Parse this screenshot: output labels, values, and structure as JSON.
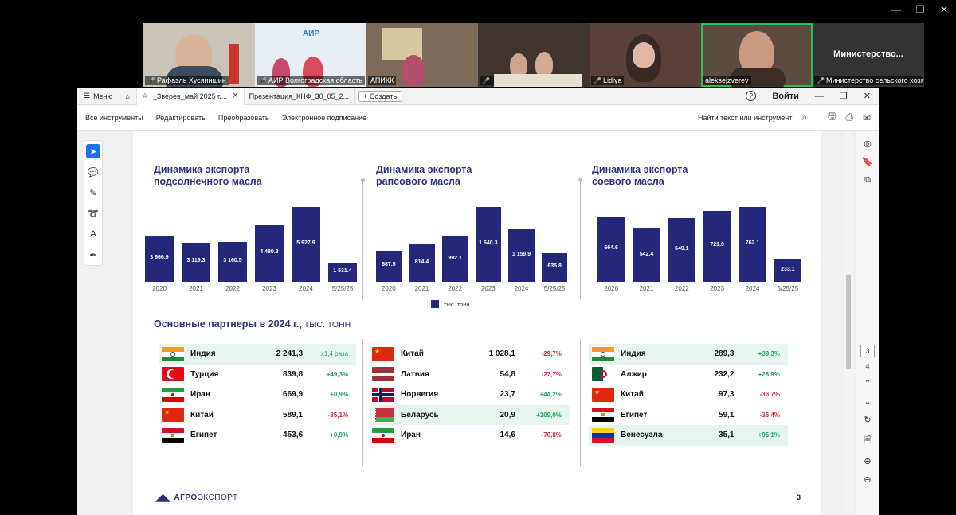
{
  "conference": {
    "participants": [
      {
        "name": "Рафаэль Хусяиншин",
        "muted": true
      },
      {
        "name": "АИР Волгоградская область",
        "muted": true
      },
      {
        "name": "АПИКК",
        "muted": false
      },
      {
        "name": "",
        "muted": true
      },
      {
        "name": "Lidiya",
        "muted": true
      },
      {
        "name": "aleksejzverev",
        "muted": false,
        "active": true
      },
      {
        "name": "Министерство сельского хозяйства",
        "muted": true,
        "display_title": "Министерство..."
      }
    ],
    "window_controls": [
      "—",
      "❐",
      "✕"
    ]
  },
  "tabs": {
    "menu_label": "Меню",
    "home_icon": "home-icon",
    "items": [
      {
        "label": "_Зверев_май 2025 г....",
        "active": true
      },
      {
        "label": "Презентация_КНФ_30_05_2...",
        "active": false
      }
    ],
    "new_tab_label": "+ Создать",
    "help_icon": "?",
    "signin_label": "Войти"
  },
  "toolbar": {
    "items": [
      "Все инструменты",
      "Редактировать",
      "Преобразовать",
      "Электронное подписание"
    ],
    "search_label": "Найти текст или инструмент"
  },
  "slide": {
    "charts_title_sunflower": "Динамика экспорта\nподсолнечного масла",
    "charts_title_rapeseed": "Динамика экспорта\nрапсового масла",
    "charts_title_soy": "Динамика экспорта\nсоевого масла",
    "legend_label": "тыс. тонн",
    "partners_title": "Основные партнеры в 2024 г.,",
    "partners_unit": " ТЫС. ТОНН",
    "logo_bold": "АГРО",
    "logo_thin": "ЭКСПОРТ",
    "page_number": "3"
  },
  "chart_data": [
    {
      "type": "bar",
      "title": "Динамика экспорта подсолнечного масла",
      "categories": [
        "2020",
        "2021",
        "2022",
        "2023",
        "2024",
        "5/25/25"
      ],
      "values": [
        3666.9,
        3119.3,
        3160.5,
        4480.8,
        5927.9,
        1531.4
      ],
      "value_labels": [
        "3 666.9",
        "3 119.3",
        "3 160.5",
        "4 480.8",
        "5 927.9",
        "1 531.4"
      ],
      "ylim": [
        0,
        5927.9
      ]
    },
    {
      "type": "bar",
      "title": "Динамика экспорта рапсового масла",
      "categories": [
        "2020",
        "2021",
        "2022",
        "2023",
        "2024",
        "5/25/25"
      ],
      "values": [
        687.5,
        814.4,
        992.1,
        1640.3,
        1159.9,
        635.8
      ],
      "value_labels": [
        "687.5",
        "814.4",
        "992.1",
        "1 640.3",
        "1 159.9",
        "635.8"
      ],
      "ylim": [
        0,
        1640.3
      ]
    },
    {
      "type": "bar",
      "title": "Динамика экспорта соевого масла",
      "categories": [
        "2020",
        "2021",
        "2022",
        "2023",
        "2024",
        "5/25/25"
      ],
      "values": [
        664.6,
        542.4,
        649.1,
        721.9,
        762.1,
        233.1
      ],
      "value_labels": [
        "664.6",
        "542.4",
        "649.1",
        "721.9",
        "762.1",
        "233.1"
      ],
      "ylim": [
        0,
        762.1
      ]
    }
  ],
  "partners": [
    {
      "rows": [
        {
          "country": "Индия",
          "flag": "india",
          "value": "2 241,3",
          "change": "x1,4 раза",
          "dir": "ratio",
          "hl": true
        },
        {
          "country": "Турция",
          "flag": "turkey",
          "value": "839,8",
          "change": "+49,3%",
          "dir": "up",
          "hl": false
        },
        {
          "country": "Иран",
          "flag": "iran",
          "value": "669,9",
          "change": "+0,9%",
          "dir": "up",
          "hl": false
        },
        {
          "country": "Китай",
          "flag": "china",
          "value": "589,1",
          "change": "-35,1%",
          "dir": "down",
          "hl": false
        },
        {
          "country": "Египет",
          "flag": "egypt",
          "value": "453,6",
          "change": "+0,9%",
          "dir": "up",
          "hl": false
        }
      ]
    },
    {
      "rows": [
        {
          "country": "Китай",
          "flag": "china",
          "value": "1 028,1",
          "change": "-29,7%",
          "dir": "down",
          "hl": false
        },
        {
          "country": "Латвия",
          "flag": "latvia",
          "value": "54,8",
          "change": "-27,7%",
          "dir": "down",
          "hl": false
        },
        {
          "country": "Норвегия",
          "flag": "norway",
          "value": "23,7",
          "change": "+44,2%",
          "dir": "up",
          "hl": false
        },
        {
          "country": "Беларусь",
          "flag": "belarus",
          "value": "20,9",
          "change": "+109,0%",
          "dir": "up",
          "hl": true
        },
        {
          "country": "Иран",
          "flag": "iran",
          "value": "14,6",
          "change": "-70,8%",
          "dir": "down",
          "hl": false
        }
      ]
    },
    {
      "rows": [
        {
          "country": "Индия",
          "flag": "india",
          "value": "289,3",
          "change": "+39,3%",
          "dir": "up",
          "hl": true
        },
        {
          "country": "Алжир",
          "flag": "algeria",
          "value": "232,2",
          "change": "+28,9%",
          "dir": "up",
          "hl": false
        },
        {
          "country": "Китай",
          "flag": "china",
          "value": "97,3",
          "change": "-36,7%",
          "dir": "down",
          "hl": false
        },
        {
          "country": "Египет",
          "flag": "egypt",
          "value": "59,1",
          "change": "-36,4%",
          "dir": "down",
          "hl": false
        },
        {
          "country": "Венесуэла",
          "flag": "venezuela",
          "value": "35,1",
          "change": "+95,1%",
          "dir": "up",
          "hl": true
        }
      ]
    }
  ],
  "colors": {
    "bar": "#25287a",
    "title": "#2a3080",
    "up": "#21a35f",
    "down": "#e0263a",
    "highlight": "#e7f5ef"
  },
  "right_panel": {
    "current_page": "3",
    "next_page": "4"
  }
}
